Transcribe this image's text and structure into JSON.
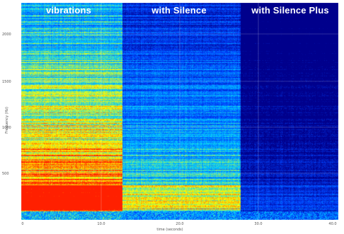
{
  "chart_data": {
    "type": "heatmap",
    "title": "",
    "xlabel": "time (seconds)",
    "ylabel": "Frequency (Hz)",
    "segments": [
      {
        "name": "vibrations",
        "label": "vibrations",
        "x_range": [
          0,
          11.8
        ],
        "intensity": 0.82
      },
      {
        "name": "with Silence",
        "label": "with Silence",
        "x_range": [
          11.8,
          25.7
        ],
        "intensity": 0.55
      },
      {
        "name": "with Silence Plus",
        "label": "with Silence Plus",
        "x_range": [
          25.7,
          37.2
        ],
        "intensity": 0.25
      }
    ],
    "x_ticks": [
      "0",
      "10.0",
      "20.0",
      "30.0",
      "40.0"
    ],
    "y_ticks": [
      "2000",
      "1500",
      "1000",
      "500"
    ],
    "color_scale": [
      "#00008c",
      "#0044ff",
      "#00ccff",
      "#ffff00",
      "#ff2000"
    ],
    "grid": true
  }
}
